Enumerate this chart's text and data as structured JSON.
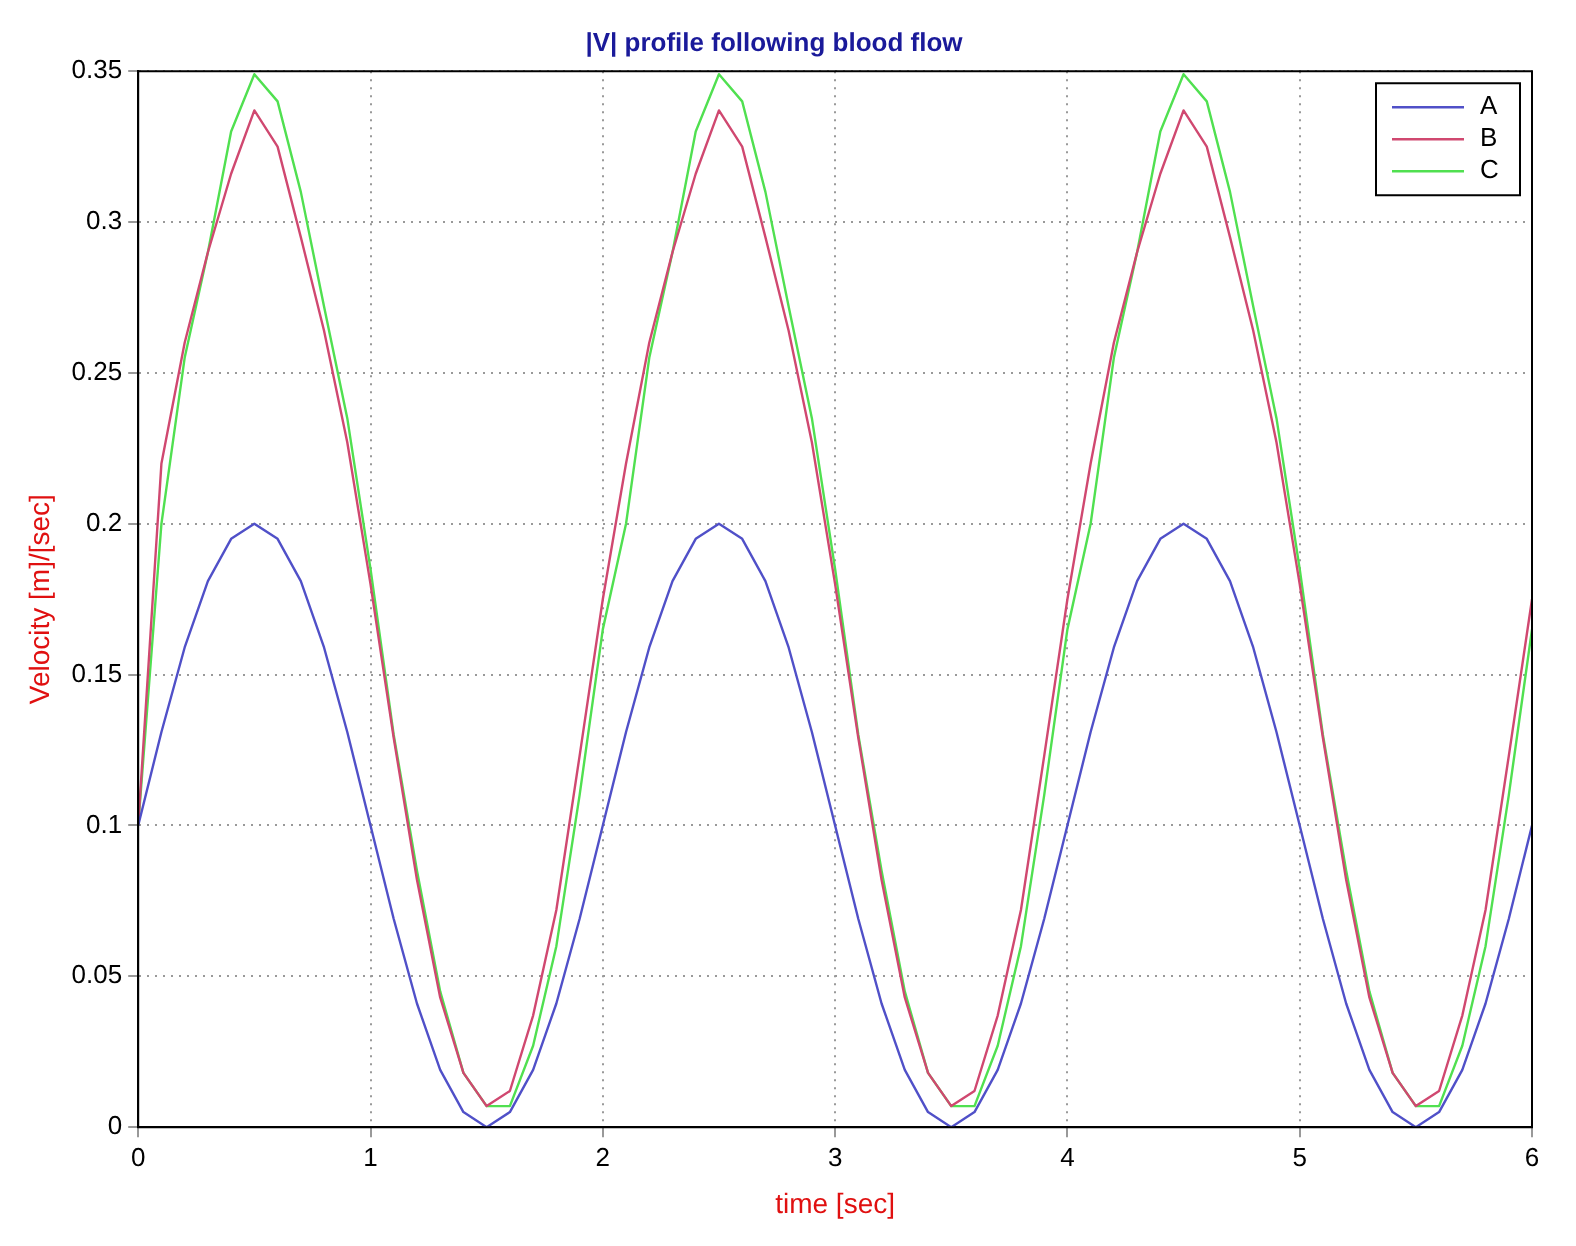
{
  "chart_data": {
    "type": "line",
    "title": "|V| profile following blood flow",
    "xlabel": "time [sec]",
    "ylabel": "Velocity [m]/[sec]",
    "x": [
      0,
      0.1,
      0.2,
      0.3,
      0.4,
      0.5,
      0.6,
      0.7,
      0.8,
      0.9,
      1,
      1.1,
      1.2,
      1.3,
      1.4,
      1.5,
      1.6,
      1.7,
      1.8,
      1.9,
      2,
      2.1,
      2.2,
      2.3,
      2.4,
      2.5,
      2.6,
      2.7,
      2.8,
      2.9,
      3,
      3.1,
      3.2,
      3.3,
      3.4,
      3.5,
      3.6,
      3.7,
      3.8,
      3.9,
      4,
      4.1,
      4.2,
      4.3,
      4.4,
      4.5,
      4.6,
      4.7,
      4.8,
      4.9,
      5,
      5.1,
      5.2,
      5.3,
      5.4,
      5.5,
      5.6,
      5.7,
      5.8,
      5.9,
      6
    ],
    "series": [
      {
        "name": "A",
        "color": "#5050c8",
        "values": [
          0.1,
          0.131,
          0.159,
          0.181,
          0.195,
          0.2,
          0.195,
          0.181,
          0.159,
          0.131,
          0.1,
          0.069,
          0.041,
          0.019,
          0.005,
          0,
          0.005,
          0.019,
          0.041,
          0.069,
          0.1,
          0.131,
          0.159,
          0.181,
          0.195,
          0.2,
          0.195,
          0.181,
          0.159,
          0.131,
          0.1,
          0.069,
          0.041,
          0.019,
          0.005,
          0,
          0.005,
          0.019,
          0.041,
          0.069,
          0.1,
          0.131,
          0.159,
          0.181,
          0.195,
          0.2,
          0.195,
          0.181,
          0.159,
          0.131,
          0.1,
          0.069,
          0.041,
          0.019,
          0.005,
          0,
          0.005,
          0.019,
          0.041,
          0.069,
          0.1
        ]
      },
      {
        "name": "B",
        "color": "#d04870",
        "values": [
          0.1,
          0.22,
          0.26,
          0.29,
          0.316,
          0.337,
          0.325,
          0.295,
          0.264,
          0.227,
          0.18,
          0.129,
          0.082,
          0.043,
          0.018,
          0.007,
          0.012,
          0.037,
          0.072,
          0.123,
          0.175,
          0.22,
          0.26,
          0.29,
          0.316,
          0.337,
          0.325,
          0.295,
          0.264,
          0.227,
          0.18,
          0.129,
          0.082,
          0.043,
          0.018,
          0.007,
          0.012,
          0.037,
          0.072,
          0.123,
          0.175,
          0.22,
          0.26,
          0.29,
          0.316,
          0.337,
          0.325,
          0.295,
          0.264,
          0.227,
          0.18,
          0.129,
          0.082,
          0.043,
          0.018,
          0.007,
          0.012,
          0.037,
          0.072,
          0.123,
          0.175
        ]
      },
      {
        "name": "C",
        "color": "#50e050",
        "values": [
          0.1,
          0.2,
          0.255,
          0.29,
          0.33,
          0.349,
          0.34,
          0.31,
          0.272,
          0.235,
          0.185,
          0.13,
          0.085,
          0.045,
          0.018,
          0.007,
          0.007,
          0.027,
          0.06,
          0.11,
          0.165,
          0.2,
          0.255,
          0.29,
          0.33,
          0.349,
          0.34,
          0.31,
          0.272,
          0.235,
          0.185,
          0.13,
          0.085,
          0.045,
          0.018,
          0.007,
          0.007,
          0.027,
          0.06,
          0.11,
          0.165,
          0.2,
          0.255,
          0.29,
          0.33,
          0.349,
          0.34,
          0.31,
          0.272,
          0.235,
          0.185,
          0.13,
          0.085,
          0.045,
          0.018,
          0.007,
          0.007,
          0.027,
          0.06,
          0.11,
          0.165
        ]
      }
    ],
    "xlim": [
      0,
      6
    ],
    "xticks": [
      0,
      1,
      2,
      3,
      4,
      5,
      6
    ],
    "ylim": [
      0,
      0.35
    ],
    "yticks": [
      0,
      0.05,
      0.1,
      0.15,
      0.2,
      0.25,
      0.3,
      0.35
    ],
    "grid": true,
    "legend": "top right",
    "marker": "none",
    "line_style": "solid"
  }
}
